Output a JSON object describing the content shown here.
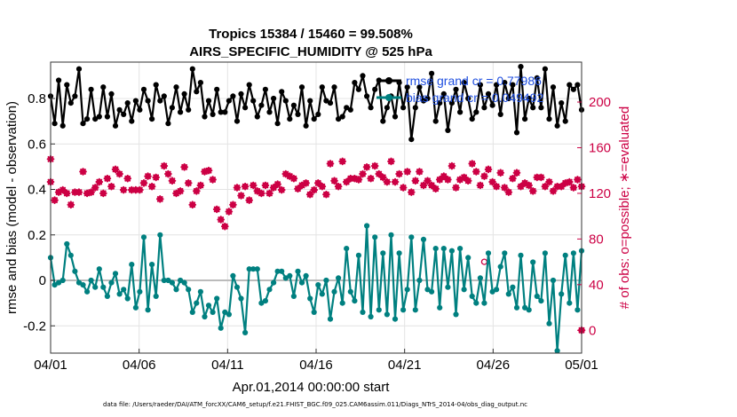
{
  "chart_data": {
    "type": "line",
    "title": "Tropics 15384 / 15460 = 99.508%",
    "subtitle": "AIRS_SPECIFIC_HUMIDITY @ 525 hPa",
    "xlabel": "Apr.01,2014 00:00:00 start",
    "ylabel_left": "rmse and bias (model - observation)",
    "ylabel_right": "# of obs: o=possible; ∗=evaluated",
    "footer": "data file: /Users/raeder/DAI/ATM_forcXX/CAM6_setup/f.e21.FHIST_BGC.f09_025.CAM6assim.011/Diags_NTrS_2014-04/obs_diag_output.nc",
    "x_range_days": [
      0,
      30
    ],
    "x_ticks": [
      {
        "day": 0,
        "label": "04/01"
      },
      {
        "day": 5,
        "label": "04/06"
      },
      {
        "day": 10,
        "label": "04/11"
      },
      {
        "day": 15,
        "label": "04/16"
      },
      {
        "day": 20,
        "label": "04/21"
      },
      {
        "day": 25,
        "label": "04/26"
      },
      {
        "day": 30,
        "label": "05/01"
      }
    ],
    "ylim_left": [
      -0.32,
      0.96
    ],
    "y_ticks_left": [
      -0.2,
      0,
      0.2,
      0.4,
      0.6,
      0.8
    ],
    "y_tick_labels_left": [
      "-0.2",
      "0",
      "0.2",
      "0.4",
      "0.6",
      "0.8"
    ],
    "ylim_right": [
      -20,
      235
    ],
    "y_ticks_right": [
      0,
      40,
      80,
      120,
      160,
      200
    ],
    "y_tick_labels_right": [
      "0",
      "40",
      "80",
      "120",
      "160",
      "200"
    ],
    "legend": [
      "rmse grand cr = 0.77986",
      "bias grand cr = 0.049492"
    ],
    "colors": {
      "rmse": "#000000",
      "bias": "#008080",
      "obs": "#cc0044",
      "legend_text": "#1f4fe0",
      "zero_line": "#bbbbbb",
      "grid": "#e4e4e4"
    },
    "series": [
      {
        "name": "rmse",
        "values": [
          0.81,
          0.69,
          0.88,
          0.68,
          0.86,
          0.78,
          0.81,
          0.93,
          0.69,
          0.71,
          0.84,
          0.71,
          0.72,
          0.85,
          0.72,
          0.82,
          0.68,
          0.75,
          0.73,
          0.78,
          0.7,
          0.79,
          0.75,
          0.84,
          0.79,
          0.71,
          0.86,
          0.79,
          0.81,
          0.69,
          0.76,
          0.85,
          0.74,
          0.82,
          0.75,
          0.93,
          0.83,
          0.87,
          0.72,
          0.79,
          0.73,
          0.84,
          0.74,
          0.74,
          0.79,
          0.81,
          0.7,
          0.82,
          0.76,
          0.86,
          0.79,
          0.72,
          0.77,
          0.84,
          0.74,
          0.8,
          0.69,
          0.83,
          0.79,
          0.71,
          0.77,
          0.73,
          0.85,
          0.68,
          0.79,
          0.71,
          0.73,
          0.85,
          0.79,
          0.78,
          0.85,
          0.71,
          0.72,
          0.76,
          0.75,
          0.87,
          0.84,
          0.9,
          0.81,
          0.76,
          0.84,
          0.88,
          0.7,
          0.76,
          0.81,
          0.72,
          0.87,
          0.76,
          0.85,
          0.62,
          0.76,
          0.85,
          0.79,
          0.8,
          0.91,
          0.7,
          0.78,
          0.82,
          0.66,
          0.78,
          0.84,
          0.74,
          0.87,
          0.8,
          0.71,
          0.74,
          0.86,
          0.76,
          0.82,
          0.77,
          0.86,
          0.73,
          0.87,
          0.8,
          0.86,
          0.65,
          0.94,
          0.71,
          0.8,
          0.76,
          0.89,
          0.76,
          0.93,
          0.71,
          0.85,
          0.68,
          0.78,
          0.7,
          0.86,
          0.84,
          0.86,
          0.75
        ]
      },
      {
        "name": "bias",
        "values": [
          0.1,
          -0.02,
          -0.01,
          0.0,
          0.16,
          0.11,
          0.04,
          -0.01,
          -0.02,
          -0.05,
          0.0,
          -0.03,
          0.05,
          -0.03,
          -0.07,
          -0.01,
          0.03,
          -0.06,
          -0.04,
          -0.08,
          0.07,
          -0.12,
          -0.05,
          0.19,
          -0.13,
          0.07,
          -0.07,
          0.2,
          0.0,
          0.0,
          -0.01,
          -0.04,
          0.0,
          -0.01,
          -0.04,
          -0.14,
          -0.1,
          -0.05,
          -0.16,
          -0.11,
          -0.14,
          -0.08,
          -0.21,
          -0.14,
          -0.15,
          0.02,
          -0.03,
          -0.08,
          -0.23,
          0.05,
          0.05,
          0.05,
          -0.1,
          -0.09,
          -0.04,
          -0.01,
          0.04,
          0.04,
          0.01,
          0.02,
          -0.07,
          0.04,
          -0.01,
          0.02,
          -0.08,
          -0.14,
          -0.02,
          -0.06,
          0.0,
          -0.17,
          -0.05,
          0.01,
          -0.1,
          0.14,
          -0.05,
          -0.09,
          0.11,
          -0.14,
          0.24,
          -0.16,
          0.19,
          -0.13,
          0.12,
          -0.15,
          0.2,
          -0.17,
          0.12,
          -0.13,
          -0.04,
          0.19,
          -0.13,
          0.0,
          0.18,
          -0.04,
          -0.05,
          0.14,
          -0.12,
          0.14,
          -0.03,
          0.13,
          -0.15,
          0.14,
          -0.04,
          0.1,
          -0.07,
          -0.1,
          0.01,
          -0.1,
          0.12,
          -0.05,
          -0.04,
          0.06,
          0.12,
          -0.06,
          -0.03,
          -0.12,
          0.11,
          -0.12,
          -0.13,
          0.08,
          -0.07,
          -0.09,
          0.12,
          -0.19,
          0.0,
          -0.31,
          -0.06,
          0.11,
          -0.1,
          0.12,
          -0.13,
          0.13
        ]
      },
      {
        "name": "obs_possible",
        "values": [
          130,
          114,
          121,
          123,
          120,
          110,
          121,
          121,
          139,
          120,
          121,
          125,
          130,
          120,
          133,
          126,
          141,
          137,
          123,
          133,
          123,
          123,
          123,
          129,
          135,
          126,
          134,
          115,
          144,
          137,
          131,
          120,
          122,
          143,
          129,
          110,
          122,
          127,
          139,
          140,
          132,
          106,
          97,
          91,
          104,
          110,
          125,
          118,
          126,
          114,
          127,
          122,
          120,
          127,
          120,
          125,
          128,
          123,
          137,
          135,
          133,
          124,
          127,
          129,
          119,
          123,
          129,
          126,
          119,
          146,
          131,
          126,
          148,
          130,
          133,
          133,
          132,
          137,
          143,
          133,
          144,
          137,
          134,
          130,
          148,
          130,
          137,
          125,
          139,
          121,
          131,
          139,
          127,
          131,
          127,
          124,
          132,
          135,
          132,
          144,
          125,
          132,
          134,
          131,
          146,
          139,
          127,
          135,
          141,
          130,
          126,
          138,
          125,
          121,
          133,
          138,
          126,
          129,
          127,
          122,
          134,
          134,
          126,
          130,
          122,
          126,
          126,
          129,
          130,
          125,
          132,
          126
        ]
      },
      {
        "name": "obs_evaluated",
        "values": [
          130,
          114,
          121,
          123,
          120,
          110,
          121,
          121,
          139,
          120,
          121,
          125,
          130,
          120,
          133,
          126,
          141,
          137,
          123,
          133,
          123,
          123,
          123,
          129,
          135,
          126,
          134,
          115,
          144,
          137,
          131,
          120,
          122,
          143,
          129,
          110,
          122,
          127,
          139,
          140,
          132,
          106,
          97,
          91,
          104,
          110,
          125,
          118,
          126,
          114,
          127,
          122,
          120,
          127,
          120,
          125,
          128,
          123,
          137,
          135,
          133,
          124,
          127,
          129,
          119,
          123,
          129,
          126,
          119,
          146,
          131,
          126,
          148,
          130,
          133,
          133,
          132,
          137,
          143,
          133,
          144,
          137,
          134,
          130,
          148,
          130,
          137,
          125,
          139,
          121,
          131,
          139,
          127,
          131,
          127,
          124,
          132,
          135,
          132,
          144,
          125,
          132,
          134,
          131,
          146,
          139,
          127,
          135,
          141,
          130,
          126,
          138,
          125,
          121,
          133,
          138,
          126,
          129,
          127,
          122,
          134,
          134,
          126,
          130,
          122,
          126,
          126,
          129,
          130,
          125,
          132,
          126
        ]
      }
    ],
    "extra_points": [
      {
        "name": "obs_possible_end",
        "day": 30,
        "value": 0
      },
      {
        "name": "obs_evaluated_end",
        "day": 30,
        "value": 0
      },
      {
        "name": "obs_evaluated_day1",
        "day": 0,
        "value": 150
      },
      {
        "name": "obs_possible_day24",
        "day": 24.5,
        "value": 60
      }
    ]
  }
}
